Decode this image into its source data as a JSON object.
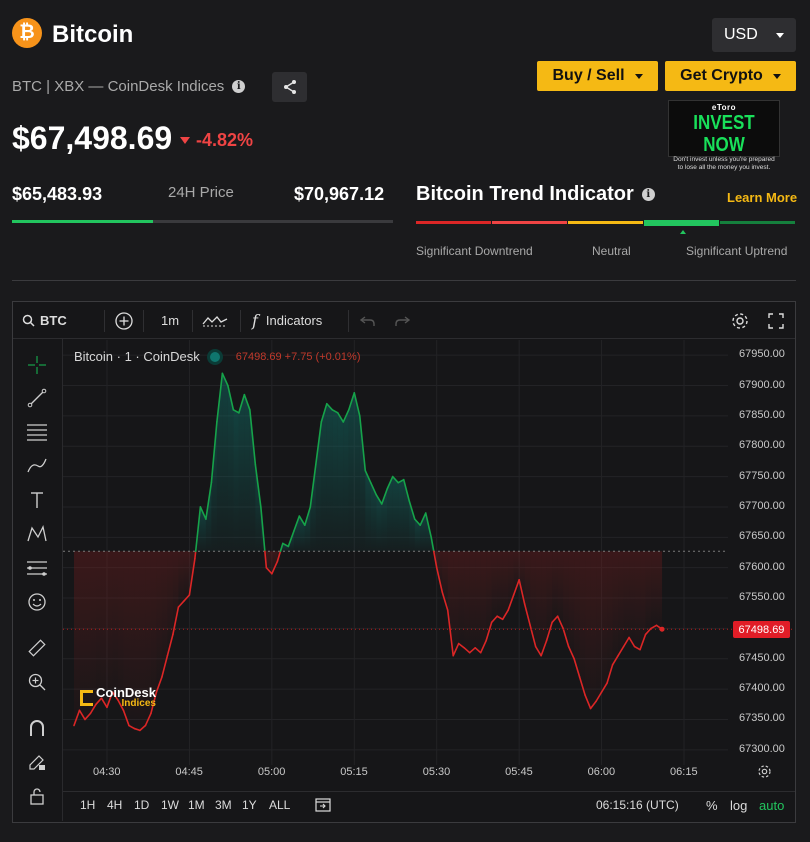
{
  "header": {
    "coin_symbol": "₿",
    "coin_name": "Bitcoin",
    "subtitle": "BTC | XBX — CoinDesk Indices",
    "price": "$67,498.69",
    "change": "-4.82%",
    "currency": "USD",
    "buy_sell_label": "Buy / Sell",
    "get_crypto_label": "Get Crypto",
    "info_icon": "i"
  },
  "ad": {
    "brand": "eToro",
    "headline": "INVEST NOW",
    "disclaimer": "Don't invest unless you're prepared to lose all the money you invest."
  },
  "range": {
    "low": "$65,483.93",
    "label": "24H Price",
    "high": "$70,967.12",
    "position": 0.37
  },
  "trend": {
    "title": "Bitcoin Trend Indicator",
    "learn_more": "Learn More",
    "labels": [
      "Significant Downtrend",
      "Neutral",
      "Significant Uptrend"
    ],
    "colors": [
      "#dc2626",
      "#ef4444",
      "#f5b914",
      "#22c55e",
      "#15803d"
    ],
    "active_segment": 3
  },
  "toolbar": {
    "symbol": "BTC",
    "interval": "1m",
    "indicators_label": "Indicators",
    "fx_glyph": "f"
  },
  "chart_legend": {
    "title": "Bitcoin · 1 · CoinDesk",
    "values": "67498.69  +7.75 (+0.01%)"
  },
  "bottom": {
    "periods": [
      "1H",
      "4H",
      "1D",
      "1W",
      "1M",
      "3M",
      "1Y",
      "ALL"
    ],
    "time": "06:15:16 (UTC)",
    "pct": "%",
    "log": "log",
    "auto": "auto"
  },
  "watermark": {
    "name": "CoinDesk",
    "sub": "Indices"
  },
  "chart_data": {
    "type": "line",
    "ylim": [
      67275,
      67975
    ],
    "yticks": [
      "67950.00",
      "67900.00",
      "67850.00",
      "67800.00",
      "67750.00",
      "67700.00",
      "67650.00",
      "67600.00",
      "67550.00",
      "67500.00",
      "67450.00",
      "67400.00",
      "67350.00",
      "67300.00"
    ],
    "xticks": [
      "04:30",
      "04:45",
      "05:00",
      "05:15",
      "05:30",
      "05:45",
      "06:00",
      "06:15"
    ],
    "baseline": 67627,
    "last_price_label": "67498.69",
    "colors": {
      "up": "#16a34a",
      "down": "#dc2626"
    },
    "series": [
      {
        "values": [
          [
            "04:24",
            67340
          ],
          [
            "04:25",
            67365
          ],
          [
            "04:26",
            67350
          ],
          [
            "04:27",
            67360
          ],
          [
            "04:28",
            67375
          ],
          [
            "04:29",
            67385
          ],
          [
            "04:30",
            67370
          ],
          [
            "04:31",
            67395
          ],
          [
            "04:32",
            67382
          ],
          [
            "04:33",
            67365
          ],
          [
            "04:34",
            67340
          ],
          [
            "04:35",
            67335
          ],
          [
            "04:36",
            67332
          ],
          [
            "04:37",
            67340
          ],
          [
            "04:38",
            67360
          ],
          [
            "04:39",
            67395
          ],
          [
            "04:40",
            67420
          ],
          [
            "04:41",
            67455
          ],
          [
            "04:42",
            67490
          ],
          [
            "04:43",
            67535
          ],
          [
            "04:44",
            67545
          ],
          [
            "04:45",
            67555
          ],
          [
            "04:46",
            67615
          ],
          [
            "04:47",
            67700
          ],
          [
            "04:48",
            67680
          ],
          [
            "04:49",
            67740
          ],
          [
            "04:50",
            67840
          ],
          [
            "04:51",
            67920
          ],
          [
            "04:52",
            67900
          ],
          [
            "04:53",
            67860
          ],
          [
            "04:54",
            67855
          ],
          [
            "04:55",
            67885
          ],
          [
            "04:56",
            67860
          ],
          [
            "04:57",
            67770
          ],
          [
            "04:58",
            67700
          ],
          [
            "04:59",
            67600
          ],
          [
            "05:00",
            67590
          ],
          [
            "05:01",
            67610
          ],
          [
            "05:02",
            67640
          ],
          [
            "05:03",
            67635
          ],
          [
            "05:04",
            67660
          ],
          [
            "05:05",
            67685
          ],
          [
            "05:06",
            67670
          ],
          [
            "05:07",
            67700
          ],
          [
            "05:08",
            67770
          ],
          [
            "05:09",
            67840
          ],
          [
            "05:10",
            67870
          ],
          [
            "05:11",
            67860
          ],
          [
            "05:12",
            67855
          ],
          [
            "05:13",
            67840
          ],
          [
            "05:14",
            67860
          ],
          [
            "05:15",
            67888
          ],
          [
            "05:16",
            67850
          ],
          [
            "05:17",
            67760
          ],
          [
            "05:18",
            67740
          ],
          [
            "05:19",
            67720
          ],
          [
            "05:20",
            67705
          ],
          [
            "05:21",
            67730
          ],
          [
            "05:22",
            67750
          ],
          [
            "05:23",
            67740
          ],
          [
            "05:24",
            67745
          ],
          [
            "05:25",
            67710
          ],
          [
            "05:26",
            67680
          ],
          [
            "05:27",
            67670
          ],
          [
            "05:28",
            67690
          ],
          [
            "05:29",
            67650
          ],
          [
            "05:30",
            67600
          ],
          [
            "05:31",
            67560
          ],
          [
            "05:32",
            67530
          ],
          [
            "05:33",
            67455
          ],
          [
            "05:34",
            67475
          ],
          [
            "05:35",
            67468
          ],
          [
            "05:36",
            67460
          ],
          [
            "05:37",
            67468
          ],
          [
            "05:38",
            67460
          ],
          [
            "05:39",
            67480
          ],
          [
            "05:40",
            67510
          ],
          [
            "05:41",
            67520
          ],
          [
            "05:42",
            67515
          ],
          [
            "05:43",
            67530
          ],
          [
            "05:44",
            67555
          ],
          [
            "05:45",
            67580
          ],
          [
            "05:46",
            67540
          ],
          [
            "05:47",
            67505
          ],
          [
            "05:48",
            67470
          ],
          [
            "05:49",
            67455
          ],
          [
            "05:50",
            67480
          ],
          [
            "05:51",
            67510
          ],
          [
            "05:52",
            67520
          ],
          [
            "05:53",
            67500
          ],
          [
            "05:54",
            67470
          ],
          [
            "05:55",
            67450
          ],
          [
            "05:56",
            67420
          ],
          [
            "05:57",
            67390
          ],
          [
            "05:58",
            67368
          ],
          [
            "05:59",
            67380
          ],
          [
            "06:00",
            67395
          ],
          [
            "06:01",
            67410
          ],
          [
            "06:02",
            67440
          ],
          [
            "06:03",
            67455
          ],
          [
            "06:04",
            67470
          ],
          [
            "06:05",
            67485
          ],
          [
            "06:06",
            67470
          ],
          [
            "06:07",
            67465
          ],
          [
            "06:08",
            67490
          ],
          [
            "06:09",
            67500
          ],
          [
            "06:10",
            67505
          ],
          [
            "06:11",
            67498.69
          ]
        ]
      }
    ]
  }
}
